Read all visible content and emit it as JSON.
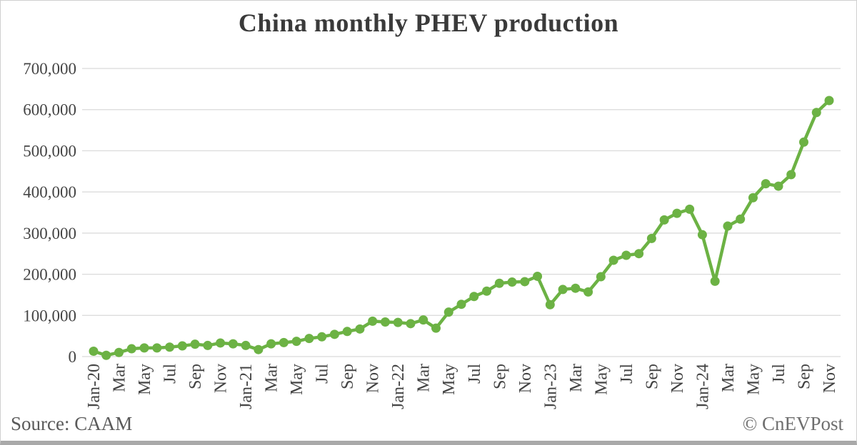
{
  "title": "China monthly PHEV production",
  "footer": {
    "source": "Source: CAAM",
    "copyright": "© CnEVPost"
  },
  "colors": {
    "line": "#6cb244",
    "grid": "#d9d9d9",
    "axis_text": "#444444",
    "title_text": "#3a3a3a",
    "source_text": "#595959",
    "copyright_text": "#6e6e6e",
    "background": "#ffffff",
    "border": "#cfcfcf",
    "bottom_bar": "#a9a9a9"
  },
  "chart_data": {
    "type": "line",
    "title": "China monthly PHEV production",
    "xlabel": "",
    "ylabel": "",
    "legend": "none",
    "grid": "horizontal",
    "marker": "circle",
    "ylim": [
      0,
      700000
    ],
    "y_ticks": [
      0,
      100000,
      200000,
      300000,
      400000,
      500000,
      600000,
      700000
    ],
    "x": [
      "Jan-20",
      "Feb-20",
      "Mar-20",
      "Apr-20",
      "May-20",
      "Jun-20",
      "Jul-20",
      "Aug-20",
      "Sep-20",
      "Oct-20",
      "Nov-20",
      "Dec-20",
      "Jan-21",
      "Feb-21",
      "Mar-21",
      "Apr-21",
      "May-21",
      "Jun-21",
      "Jul-21",
      "Aug-21",
      "Sep-21",
      "Oct-21",
      "Nov-21",
      "Dec-21",
      "Jan-22",
      "Feb-22",
      "Mar-22",
      "Apr-22",
      "May-22",
      "Jun-22",
      "Jul-22",
      "Aug-22",
      "Sep-22",
      "Oct-22",
      "Nov-22",
      "Dec-22",
      "Jan-23",
      "Feb-23",
      "Mar-23",
      "Apr-23",
      "May-23",
      "Jun-23",
      "Jul-23",
      "Aug-23",
      "Sep-23",
      "Oct-23",
      "Nov-23",
      "Dec-23",
      "Jan-24",
      "Feb-24",
      "Mar-24",
      "Apr-24",
      "May-24",
      "Jun-24",
      "Jul-24",
      "Aug-24",
      "Sep-24",
      "Oct-24",
      "Nov-24"
    ],
    "values": [
      13000,
      3000,
      10000,
      19000,
      21000,
      21000,
      23000,
      26000,
      30000,
      27000,
      33000,
      31000,
      27000,
      17000,
      31000,
      34000,
      37000,
      44000,
      48000,
      54000,
      61000,
      67000,
      86000,
      84000,
      83000,
      80000,
      89000,
      69000,
      108000,
      127000,
      146000,
      159000,
      178000,
      181000,
      182000,
      195000,
      126000,
      163000,
      166000,
      157000,
      194000,
      234000,
      246000,
      250000,
      287000,
      332000,
      348000,
      358000,
      296000,
      183000,
      317000,
      334000,
      386000,
      420000,
      414000,
      442000,
      521000,
      593000,
      622000
    ],
    "x_tick_every": 2,
    "x_tick_labels": [
      "Jan-20",
      "Mar",
      "May",
      "Jul",
      "Sep",
      "Nov",
      "Jan-21",
      "Mar",
      "May",
      "Jul",
      "Sep",
      "Nov",
      "Jan-22",
      "Mar",
      "May",
      "Jul",
      "Sep",
      "Nov",
      "Jan-23",
      "Mar",
      "May",
      "Jul",
      "Sep",
      "Nov",
      "Jan-24",
      "Mar",
      "May",
      "Jul",
      "Sep",
      "Nov"
    ]
  }
}
